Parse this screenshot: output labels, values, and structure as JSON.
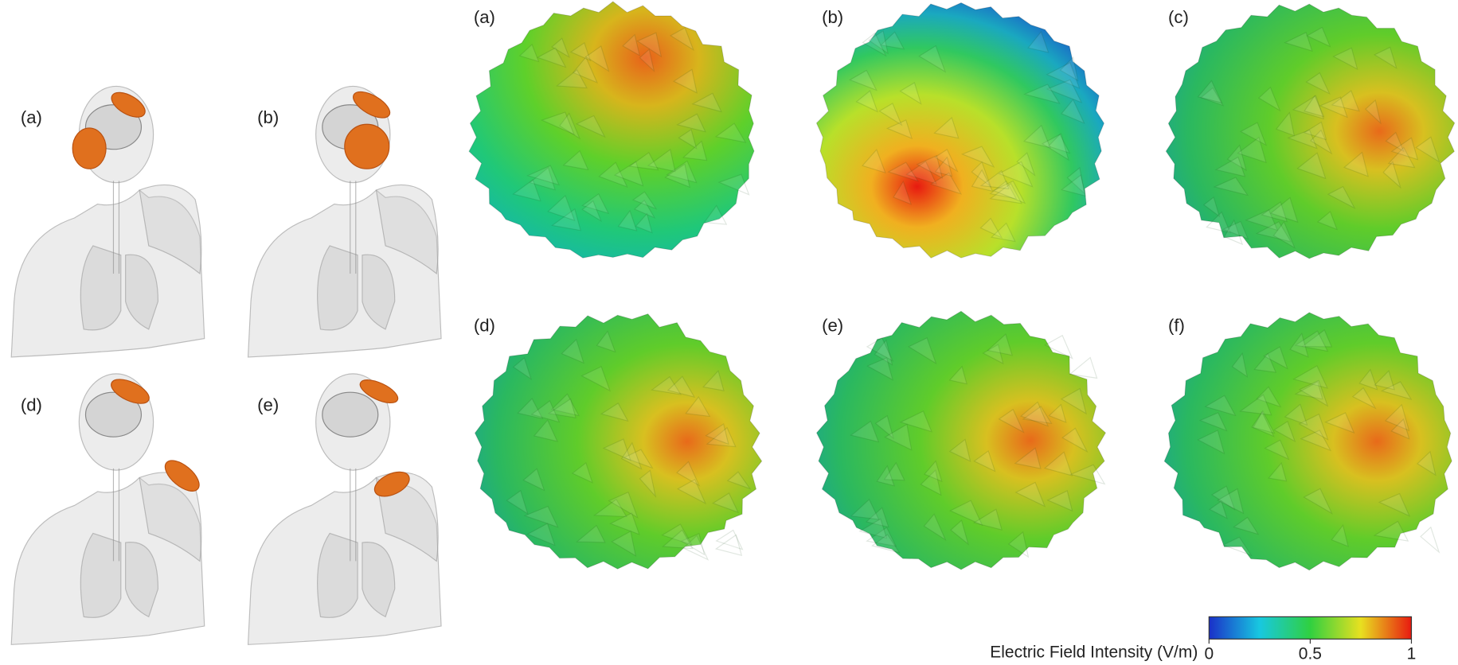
{
  "left_panels": [
    {
      "label": "(a)"
    },
    {
      "label": "(b)"
    },
    {
      "label": "(d)"
    },
    {
      "label": "(e)"
    }
  ],
  "right_panels": [
    {
      "label": "(a)"
    },
    {
      "label": "(b)"
    },
    {
      "label": "(c)"
    },
    {
      "label": "(d)"
    },
    {
      "label": "(e)"
    },
    {
      "label": "(f)"
    }
  ],
  "colorbar": {
    "label": "Electric Field Intensity (V/m)",
    "clim": [
      0,
      1
    ],
    "ticks": [
      0,
      0.5,
      1
    ]
  }
}
